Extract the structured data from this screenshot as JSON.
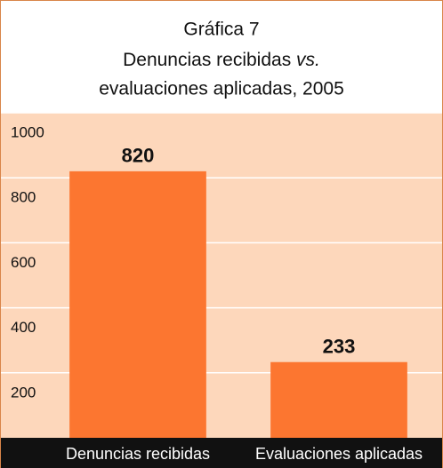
{
  "chart_data": {
    "type": "bar",
    "title": "Gráfica 7",
    "subtitle": [
      "Denuncias recibidas",
      "vs.",
      "evaluaciones aplicadas, 2005"
    ],
    "categories": [
      "Denuncias recibidas",
      "Evaluaciones aplicadas"
    ],
    "values": [
      820,
      233
    ],
    "color": "#fc7630",
    "ylim": [
      0,
      1000
    ],
    "yticks": [
      200,
      400,
      600,
      800,
      1000
    ],
    "grid": true
  }
}
